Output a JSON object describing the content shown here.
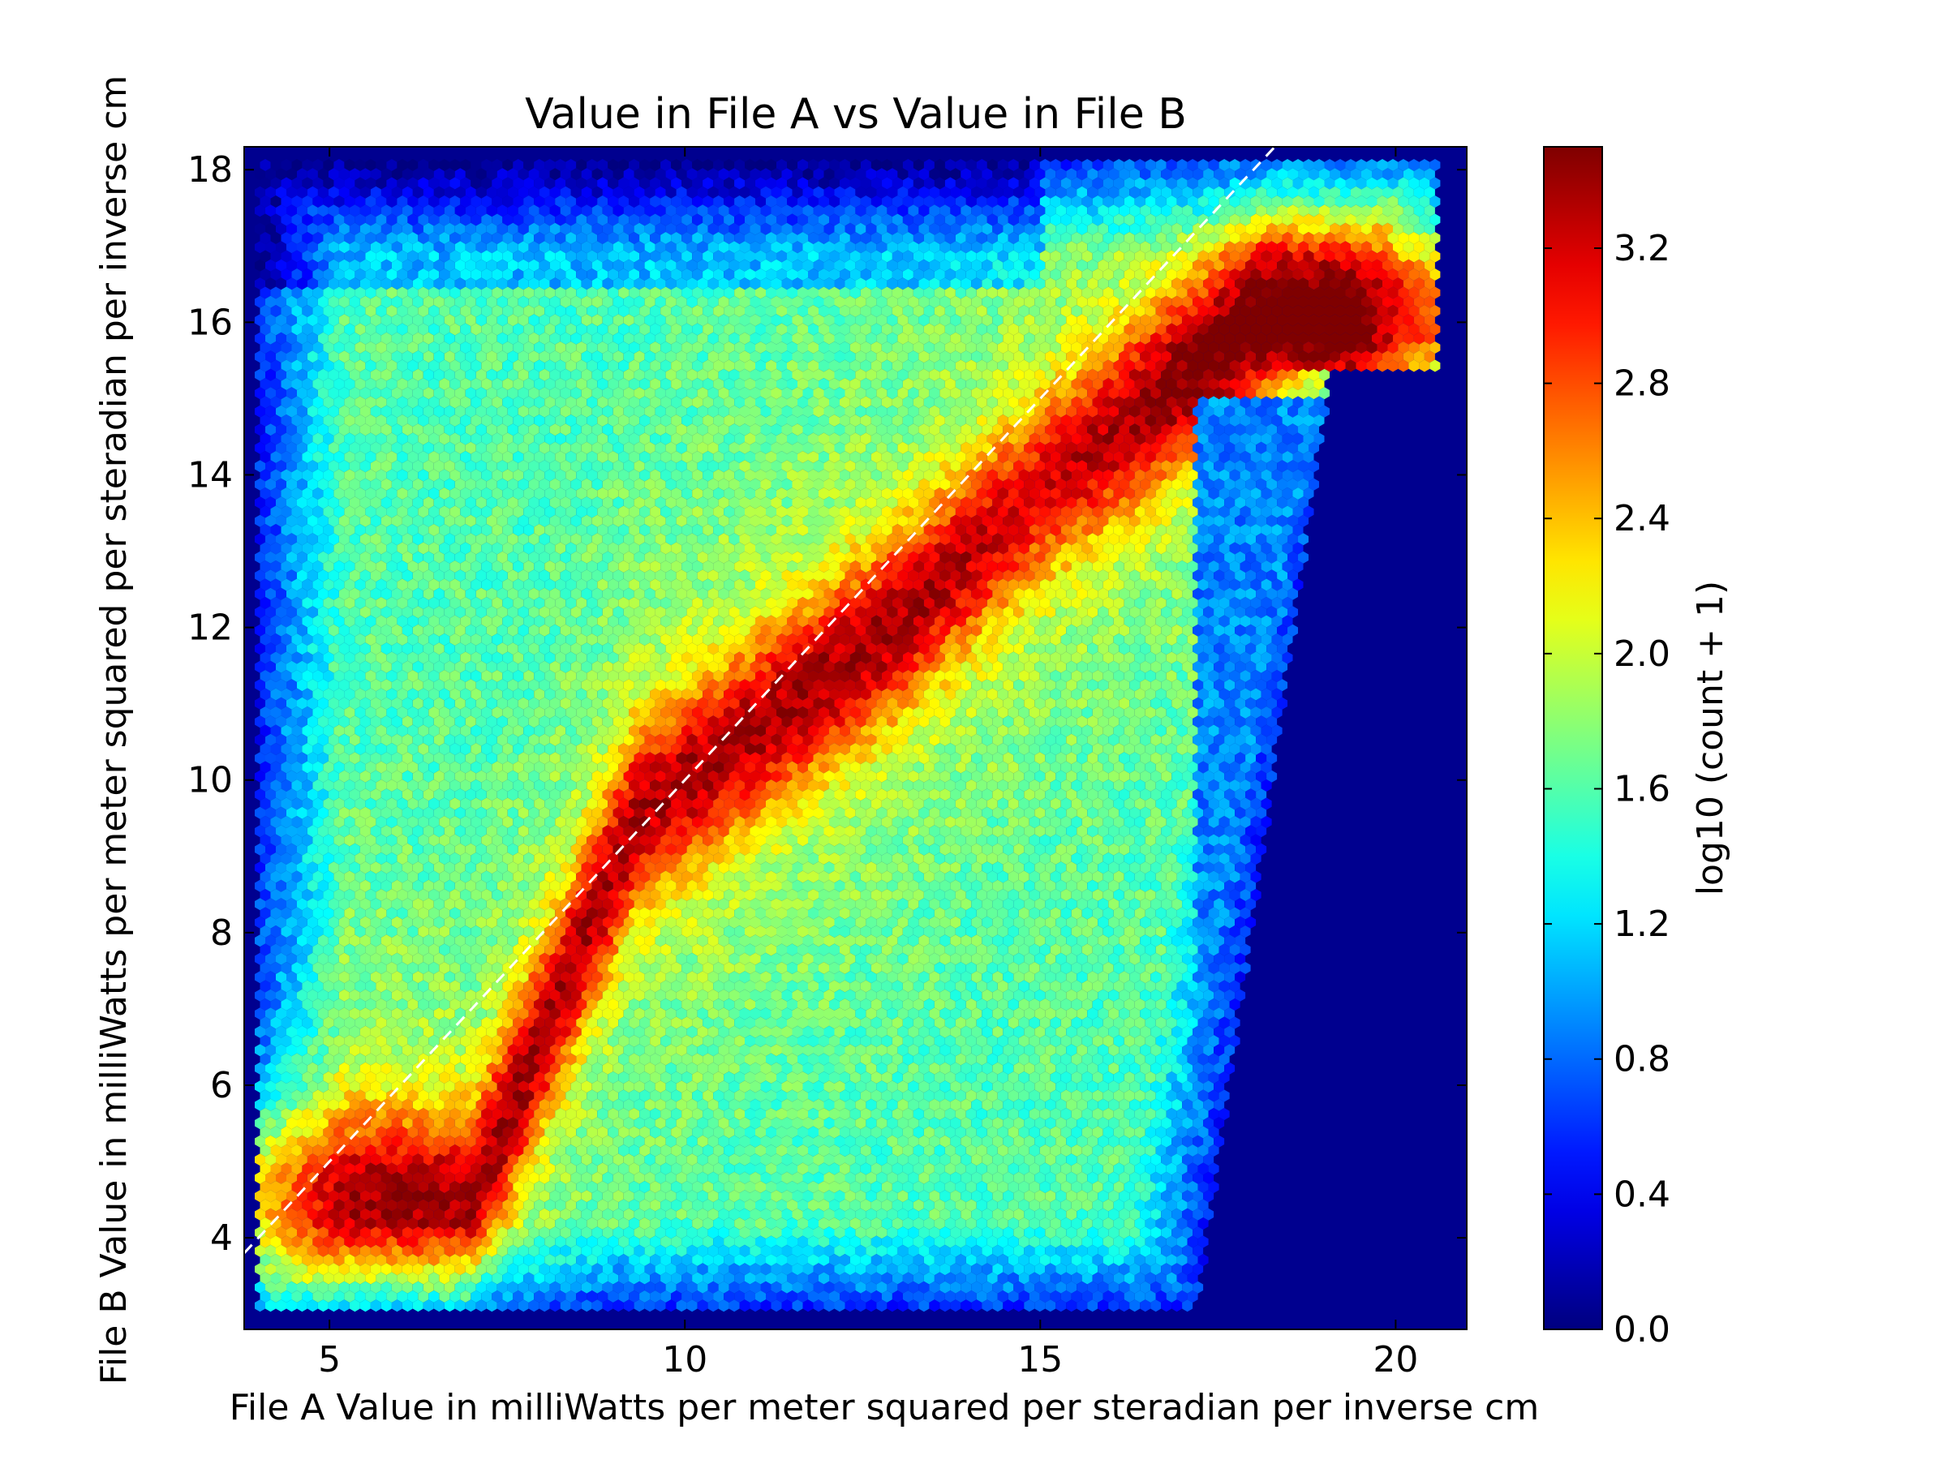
{
  "chart_data": {
    "type": "heatmap",
    "subtype": "hexbin",
    "title": "Value in File A vs Value in File B",
    "xlabel": "File A Value in milliWatts per meter squared per steradian per inverse cm",
    "ylabel": "File B Value in milliWatts per meter squared per steradian per inverse cm",
    "xlim": [
      3.8,
      21.0
    ],
    "ylim": [
      2.8,
      18.3
    ],
    "x_ticks": [
      5,
      10,
      15,
      20
    ],
    "y_ticks": [
      4,
      6,
      8,
      10,
      12,
      14,
      16,
      18
    ],
    "x_tick_labels": [
      "5",
      "10",
      "15",
      "20"
    ],
    "y_tick_labels": [
      "4",
      "6",
      "8",
      "10",
      "12",
      "14",
      "16",
      "18"
    ],
    "colorbar": {
      "label": "log10 (count + 1)",
      "range": [
        0.0,
        3.5
      ],
      "ticks": [
        0.0,
        0.4,
        0.8,
        1.2,
        1.6,
        2.0,
        2.4,
        2.8,
        3.2
      ],
      "tick_labels": [
        "0.0",
        "0.4",
        "0.8",
        "1.2",
        "1.6",
        "2.0",
        "2.4",
        "2.8",
        "3.2"
      ],
      "colormap": "jet"
    },
    "reference_line": {
      "style": "dashed",
      "color": "#ffffff",
      "from": [
        3.8,
        3.8
      ],
      "to": [
        18.3,
        18.3
      ]
    },
    "background_color": "#00008f",
    "colormap_stops": [
      "#00007f",
      "#0000ff",
      "#007fff",
      "#00ffff",
      "#7fff7f",
      "#ffff00",
      "#ff7f00",
      "#ff0000",
      "#7f0000"
    ],
    "density_model": {
      "region": {
        "x_min": 4.0,
        "x_max": 20.8,
        "y_bottom": 3.0,
        "y_top": 18.1,
        "right_edge_bottom_x": 17.2,
        "right_edge_top_x": 19.5
      },
      "ridge": [
        {
          "x": 7.0,
          "y": 4.5,
          "value": 3.05
        },
        {
          "x": 9.3,
          "y": 9.5,
          "value": 3.0
        },
        {
          "x": 12.8,
          "y": 11.9,
          "value": 3.05
        },
        {
          "x": 15.0,
          "y": 13.8,
          "value": 2.8
        },
        {
          "x": 18.1,
          "y": 16.1,
          "value": 3.4
        }
      ]
    }
  }
}
